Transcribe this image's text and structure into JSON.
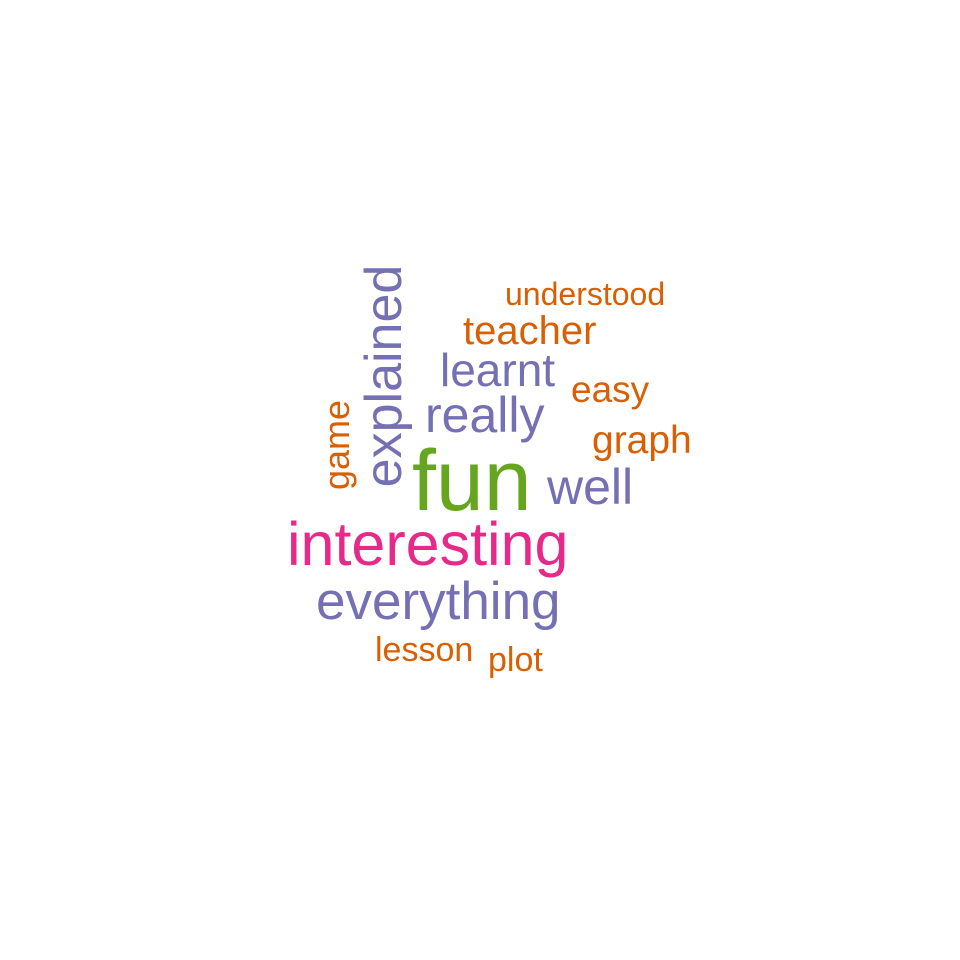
{
  "words": [
    {
      "key": "fun",
      "text": "fun",
      "color": "#66a61e",
      "rotated": false
    },
    {
      "key": "interesting",
      "text": "interesting",
      "color": "#e7298a",
      "rotated": false
    },
    {
      "key": "everything",
      "text": "everything",
      "color": "#7570b3",
      "rotated": false
    },
    {
      "key": "explained",
      "text": "explained",
      "color": "#7570b3",
      "rotated": true
    },
    {
      "key": "really",
      "text": "really",
      "color": "#7570b3",
      "rotated": false
    },
    {
      "key": "well",
      "text": "well",
      "color": "#7570b3",
      "rotated": false
    },
    {
      "key": "learnt",
      "text": "learnt",
      "color": "#7570b3",
      "rotated": false
    },
    {
      "key": "teacher",
      "text": "teacher",
      "color": "#d95f02",
      "rotated": false
    },
    {
      "key": "understood",
      "text": "understood",
      "color": "#d95f02",
      "rotated": false
    },
    {
      "key": "easy",
      "text": "easy",
      "color": "#d95f02",
      "rotated": false
    },
    {
      "key": "graph",
      "text": "graph",
      "color": "#d95f02",
      "rotated": false
    },
    {
      "key": "game",
      "text": "game",
      "color": "#d95f02",
      "rotated": true
    },
    {
      "key": "lesson",
      "text": "lesson",
      "color": "#d95f02",
      "rotated": false
    },
    {
      "key": "plot",
      "text": "plot",
      "color": "#d95f02",
      "rotated": false
    }
  ]
}
